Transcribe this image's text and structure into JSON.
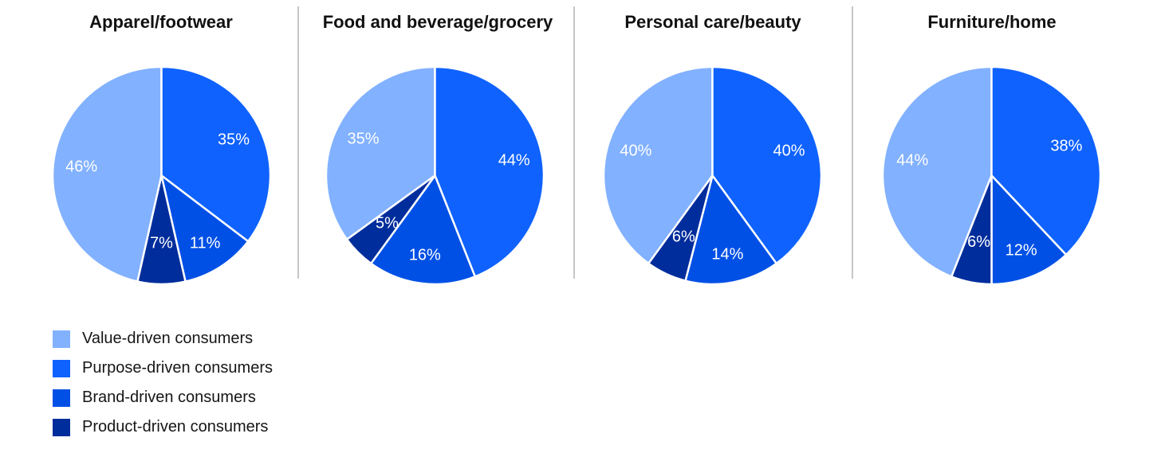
{
  "chart_data": {
    "type": "pie",
    "categories": [
      "Value-driven consumers",
      "Purpose-driven consumers",
      "Brand-driven consumers",
      "Product-driven consumers"
    ],
    "colors": [
      "#82b1ff",
      "#0f62fe",
      "#0050e6",
      "#002d9c"
    ],
    "label_color": "#ffffff",
    "divider_color": "#c6c6c6",
    "panels": [
      {
        "title": "Apparel/footwear",
        "values": [
          46,
          35,
          11,
          7
        ],
        "labels": [
          "46%",
          "35%",
          "11%",
          "7%"
        ]
      },
      {
        "title": "Food and beverage/grocery",
        "values": [
          35,
          44,
          16,
          5
        ],
        "labels": [
          "35%",
          "44%",
          "16%",
          "5%"
        ]
      },
      {
        "title": "Personal care/beauty",
        "values": [
          40,
          40,
          14,
          6
        ],
        "labels": [
          "40%",
          "40%",
          "14%",
          "6%"
        ]
      },
      {
        "title": "Furniture/home",
        "values": [
          44,
          38,
          12,
          6
        ],
        "labels": [
          "44%",
          "38%",
          "12%",
          "6%"
        ]
      }
    ],
    "legend_position": "bottom-left"
  }
}
